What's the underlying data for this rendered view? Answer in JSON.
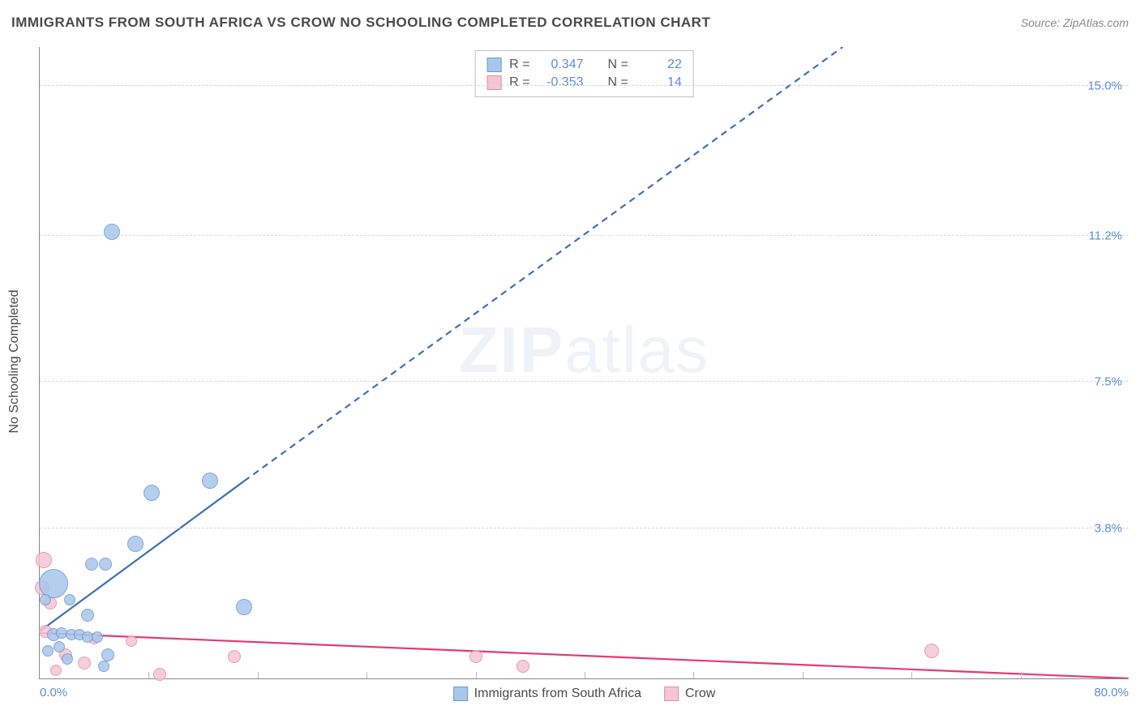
{
  "title": "IMMIGRANTS FROM SOUTH AFRICA VS CROW NO SCHOOLING COMPLETED CORRELATION CHART",
  "source": "Source: ZipAtlas.com",
  "watermark_a": "ZIP",
  "watermark_b": "atlas",
  "y_axis_title": "No Schooling Completed",
  "series": {
    "blue": {
      "name": "Immigrants from South Africa",
      "fill": "#a9c6ec",
      "stroke": "#6b99d3",
      "line_color": "#3f6fb5",
      "R_label": "R =",
      "R_value": "0.347",
      "N_label": "N =",
      "N_value": "22"
    },
    "pink": {
      "name": "Crow",
      "fill": "#f4c6d4",
      "stroke": "#e38ca9",
      "line_color": "#e23b72",
      "R_label": "R =",
      "R_value": "-0.353",
      "N_label": "N =",
      "N_value": "14"
    }
  },
  "axes": {
    "x_min": 0.0,
    "x_max": 80.0,
    "y_min": 0.0,
    "y_max": 16.0,
    "x_tick_min_label": "0.0%",
    "x_tick_max_label": "80.0%",
    "y_ticks": [
      {
        "v": 3.8,
        "label": "3.8%"
      },
      {
        "v": 7.5,
        "label": "7.5%"
      },
      {
        "v": 11.2,
        "label": "11.2%"
      },
      {
        "v": 15.0,
        "label": "15.0%"
      }
    ],
    "x_minor_ticks": [
      8,
      16,
      24,
      32,
      40,
      48,
      56,
      64,
      72
    ],
    "grid_color": "#d8d8d8"
  },
  "trend_lines": {
    "blue_solid": {
      "x1": 0.0,
      "y1": 1.2,
      "x2": 15.0,
      "y2": 5.0
    },
    "blue_dashed": {
      "x1": 15.0,
      "y1": 5.0,
      "x2": 59.0,
      "y2": 16.0
    },
    "pink_solid": {
      "x1": 0.0,
      "y1": 1.15,
      "x2": 80.0,
      "y2": 0.0
    }
  },
  "points_blue": [
    {
      "x": 5.3,
      "y": 11.3,
      "r": 10
    },
    {
      "x": 12.5,
      "y": 5.0,
      "r": 10
    },
    {
      "x": 8.2,
      "y": 4.7,
      "r": 10
    },
    {
      "x": 7.0,
      "y": 3.4,
      "r": 10
    },
    {
      "x": 1.0,
      "y": 2.4,
      "r": 18
    },
    {
      "x": 3.8,
      "y": 2.9,
      "r": 8
    },
    {
      "x": 4.8,
      "y": 2.9,
      "r": 8
    },
    {
      "x": 15.0,
      "y": 1.8,
      "r": 10
    },
    {
      "x": 3.5,
      "y": 1.6,
      "r": 8
    },
    {
      "x": 2.2,
      "y": 2.0,
      "r": 7
    },
    {
      "x": 1.0,
      "y": 1.1,
      "r": 8
    },
    {
      "x": 1.6,
      "y": 1.15,
      "r": 7
    },
    {
      "x": 2.3,
      "y": 1.1,
      "r": 7
    },
    {
      "x": 2.9,
      "y": 1.1,
      "r": 7
    },
    {
      "x": 3.5,
      "y": 1.05,
      "r": 7
    },
    {
      "x": 4.2,
      "y": 1.05,
      "r": 7
    },
    {
      "x": 5.0,
      "y": 0.6,
      "r": 8
    },
    {
      "x": 4.7,
      "y": 0.3,
      "r": 7
    },
    {
      "x": 0.6,
      "y": 0.7,
      "r": 7
    },
    {
      "x": 2.0,
      "y": 0.5,
      "r": 7
    },
    {
      "x": 0.4,
      "y": 2.0,
      "r": 7
    },
    {
      "x": 1.4,
      "y": 0.8,
      "r": 7
    }
  ],
  "points_pink": [
    {
      "x": 0.3,
      "y": 3.0,
      "r": 10
    },
    {
      "x": 0.2,
      "y": 2.3,
      "r": 9
    },
    {
      "x": 0.8,
      "y": 1.9,
      "r": 8
    },
    {
      "x": 0.4,
      "y": 1.2,
      "r": 8
    },
    {
      "x": 1.9,
      "y": 0.6,
      "r": 8
    },
    {
      "x": 3.3,
      "y": 0.4,
      "r": 8
    },
    {
      "x": 4.0,
      "y": 1.0,
      "r": 7
    },
    {
      "x": 6.7,
      "y": 0.95,
      "r": 7
    },
    {
      "x": 8.8,
      "y": 0.1,
      "r": 8
    },
    {
      "x": 14.3,
      "y": 0.55,
      "r": 8
    },
    {
      "x": 32.0,
      "y": 0.55,
      "r": 8
    },
    {
      "x": 35.5,
      "y": 0.3,
      "r": 8
    },
    {
      "x": 65.5,
      "y": 0.7,
      "r": 9
    },
    {
      "x": 1.2,
      "y": 0.2,
      "r": 7
    }
  ]
}
